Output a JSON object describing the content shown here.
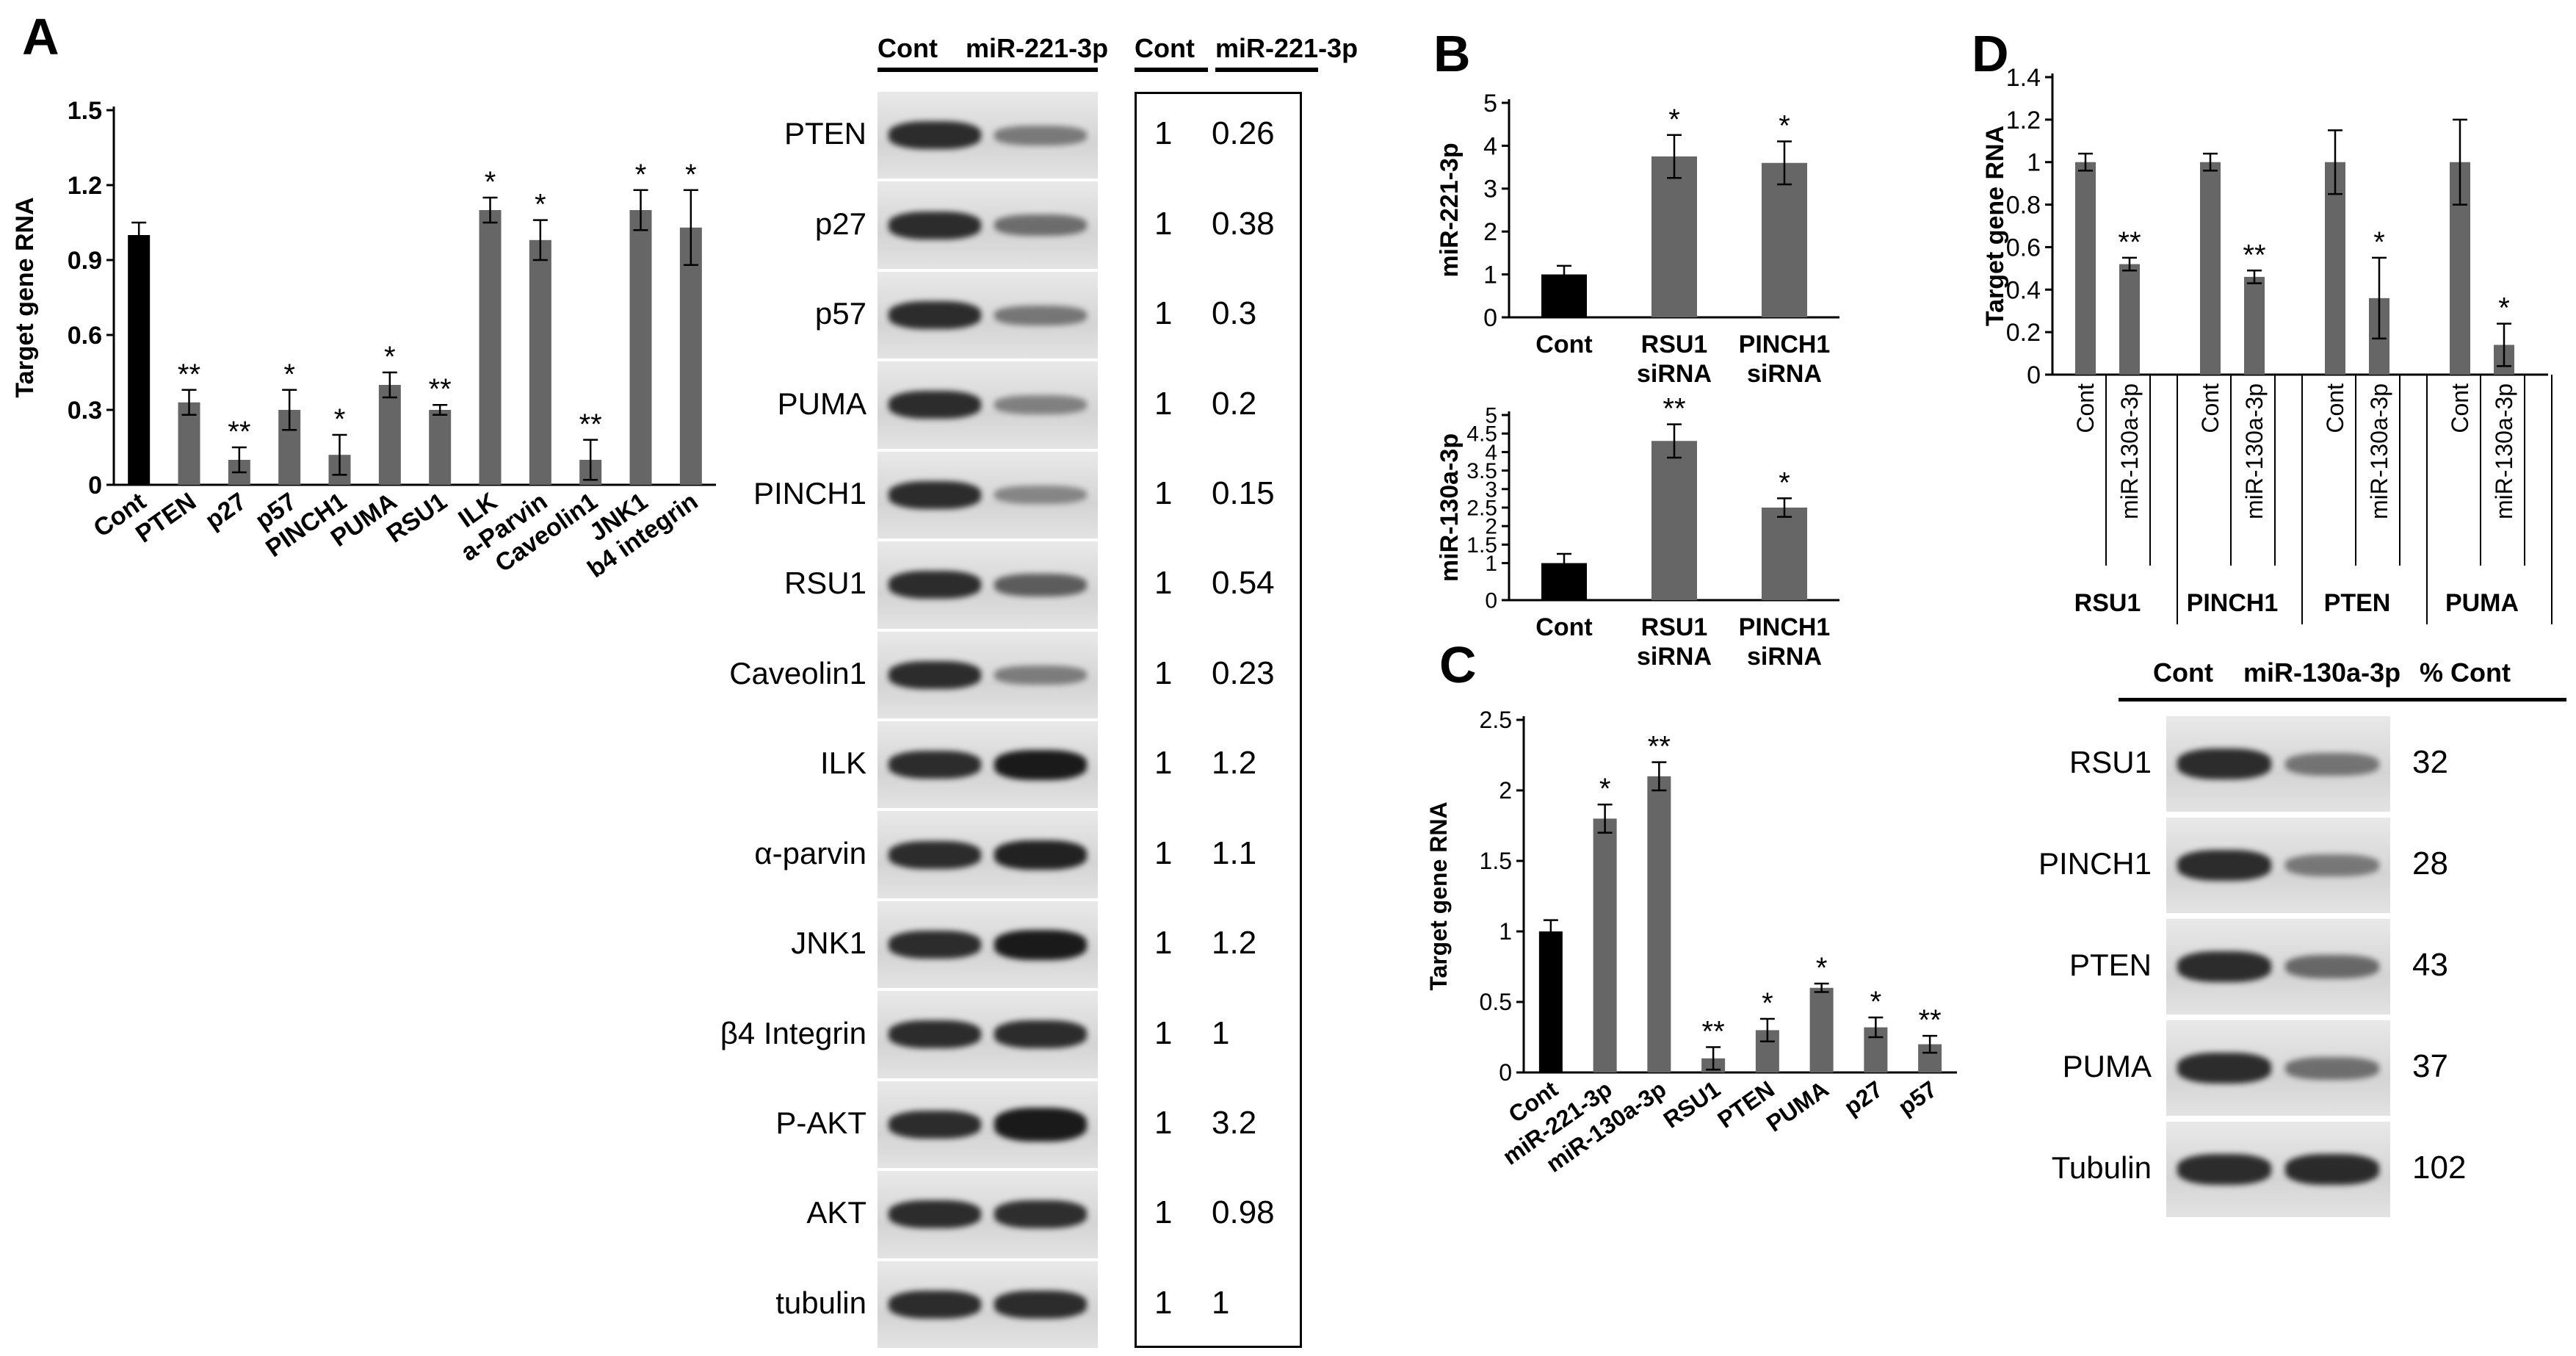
{
  "panelA": {
    "letter": "A",
    "chart_data": {
      "type": "bar",
      "ylabel": "Target gene RNA",
      "ylim": [
        0,
        1.5
      ],
      "yticks": [
        "0",
        "0.3",
        "0.6",
        "0.9",
        "1.2",
        "1.5"
      ],
      "categories": [
        "Cont",
        "PTEN",
        "p27",
        "p57",
        "PINCH1",
        "PUMA",
        "RSU1",
        "ILK",
        "a-Parvin",
        "Caveolin1",
        "JNK1",
        "b4 integrin"
      ],
      "values": [
        1.0,
        0.33,
        0.1,
        0.3,
        0.12,
        0.4,
        0.3,
        1.1,
        0.98,
        0.1,
        1.1,
        1.03
      ],
      "errors": [
        0.05,
        0.05,
        0.05,
        0.08,
        0.08,
        0.05,
        0.02,
        0.05,
        0.08,
        0.08,
        0.08,
        0.15
      ],
      "significance": [
        "",
        "**",
        "**",
        "*",
        "*",
        "*",
        "**",
        "*",
        "*",
        "**",
        "*",
        "*"
      ],
      "colors": [
        "#000000",
        "#666666",
        "#666666",
        "#666666",
        "#666666",
        "#666666",
        "#666666",
        "#666666",
        "#666666",
        "#666666",
        "#666666",
        "#666666"
      ]
    },
    "blot_header": {
      "left": "Cont",
      "right": "miR-221-3p"
    },
    "quant_header": {
      "left": "Cont",
      "right": "miR-221-3p"
    },
    "blots": [
      {
        "label": "PTEN",
        "cont": "1",
        "mir": "0.26",
        "ratio": 0.26
      },
      {
        "label": "p27",
        "cont": "1",
        "mir": "0.38",
        "ratio": 0.38
      },
      {
        "label": "p57",
        "cont": "1",
        "mir": "0.3",
        "ratio": 0.3
      },
      {
        "label": "PUMA",
        "cont": "1",
        "mir": "0.2",
        "ratio": 0.2
      },
      {
        "label": "PINCH1",
        "cont": "1",
        "mir": "0.15",
        "ratio": 0.15
      },
      {
        "label": "RSU1",
        "cont": "1",
        "mir": "0.54",
        "ratio": 0.54
      },
      {
        "label": "Caveolin1",
        "cont": "1",
        "mir": "0.23",
        "ratio": 0.23
      },
      {
        "label": "ILK",
        "cont": "1",
        "mir": "1.2",
        "ratio": 1.2
      },
      {
        "label": "α-parvin",
        "cont": "1",
        "mir": "1.1",
        "ratio": 1.1
      },
      {
        "label": "JNK1",
        "cont": "1",
        "mir": "1.2",
        "ratio": 1.2
      },
      {
        "label": "β4 Integrin",
        "cont": "1",
        "mir": "1",
        "ratio": 1.0
      },
      {
        "label": "P-AKT",
        "cont": "1",
        "mir": "3.2",
        "ratio": 3.2
      },
      {
        "label": "AKT",
        "cont": "1",
        "mir": "0.98",
        "ratio": 0.98
      },
      {
        "label": "tubulin",
        "cont": "1",
        "mir": "1",
        "ratio": 1.0
      }
    ]
  },
  "panelB": {
    "letter": "B",
    "chart_data": [
      {
        "type": "bar",
        "ylabel": "miR-221-3p",
        "ylim": [
          0,
          5
        ],
        "yticks": [
          "0",
          "1",
          "2",
          "3",
          "4",
          "5"
        ],
        "categories": [
          "Cont",
          "RSU1\nsiRNA",
          "PINCH1\nsiRNA"
        ],
        "values": [
          1.0,
          3.75,
          3.6
        ],
        "errors": [
          0.2,
          0.5,
          0.5
        ],
        "significance": [
          "",
          "*",
          "*"
        ],
        "colors": [
          "#000000",
          "#666666",
          "#666666"
        ]
      },
      {
        "type": "bar",
        "ylabel": "miR-130a-3p",
        "ylim": [
          0,
          5
        ],
        "yticks": [
          "0",
          "1",
          "1.5",
          "2",
          "2.5",
          "3",
          "3.5",
          "4",
          "4.5",
          "5"
        ],
        "categories": [
          "Cont",
          "RSU1\nsiRNA",
          "PINCH1\nsiRNA"
        ],
        "values": [
          1.0,
          4.3,
          2.5
        ],
        "errors": [
          0.25,
          0.45,
          0.25
        ],
        "significance": [
          "",
          "**",
          "*"
        ],
        "colors": [
          "#000000",
          "#666666",
          "#666666"
        ]
      }
    ]
  },
  "panelC": {
    "letter": "C",
    "chart_data": {
      "type": "bar",
      "ylabel": "Target gene RNA",
      "ylim": [
        0,
        2.5
      ],
      "yticks": [
        "0",
        "0.5",
        "1",
        "1.5",
        "2",
        "2.5"
      ],
      "categories": [
        "Cont",
        "miR-221-3p",
        "miR-130a-3p",
        "RSU1",
        "PTEN",
        "PUMA",
        "p27",
        "p57"
      ],
      "values": [
        1.0,
        1.8,
        2.1,
        0.1,
        0.3,
        0.6,
        0.32,
        0.2
      ],
      "errors": [
        0.08,
        0.1,
        0.1,
        0.08,
        0.08,
        0.03,
        0.07,
        0.06
      ],
      "significance": [
        "",
        "*",
        "**",
        "**",
        "*",
        "*",
        "*",
        "**"
      ],
      "colors": [
        "#000000",
        "#666666",
        "#666666",
        "#666666",
        "#666666",
        "#666666",
        "#666666",
        "#666666"
      ]
    }
  },
  "panelD": {
    "letter": "D",
    "chart_data": {
      "type": "bar",
      "ylabel": "Target gene RNA",
      "ylim": [
        0,
        1.4
      ],
      "yticks": [
        "0",
        "0.2",
        "0.4",
        "0.6",
        "0.8",
        "1",
        "1.2",
        "1.4"
      ],
      "groups": [
        "RSU1",
        "PINCH1",
        "PTEN",
        "PUMA"
      ],
      "categories": [
        "Cont",
        "miR-130a-3p"
      ],
      "series": [
        {
          "group": "RSU1",
          "values": [
            1.0,
            0.52
          ],
          "errors": [
            0.04,
            0.03
          ],
          "significance": [
            "",
            "**"
          ]
        },
        {
          "group": "PINCH1",
          "values": [
            1.0,
            0.46
          ],
          "errors": [
            0.04,
            0.03
          ],
          "significance": [
            "",
            "**"
          ]
        },
        {
          "group": "PTEN",
          "values": [
            1.0,
            0.36
          ],
          "errors": [
            0.15,
            0.19
          ],
          "significance": [
            "",
            "*"
          ]
        },
        {
          "group": "PUMA",
          "values": [
            1.0,
            0.14
          ],
          "errors": [
            0.2,
            0.1
          ],
          "significance": [
            "",
            "*"
          ]
        }
      ]
    },
    "blot_header": {
      "left": "Cont",
      "mid": "miR-130a-3p",
      "right": "% Cont"
    },
    "blots": [
      {
        "label": "RSU1",
        "value": "32",
        "ratio": 0.32
      },
      {
        "label": "PINCH1",
        "value": "28",
        "ratio": 0.28
      },
      {
        "label": "PTEN",
        "value": "43",
        "ratio": 0.43
      },
      {
        "label": "PUMA",
        "value": "37",
        "ratio": 0.37
      },
      {
        "label": "Tubulin",
        "value": "102",
        "ratio": 1.02
      }
    ]
  }
}
